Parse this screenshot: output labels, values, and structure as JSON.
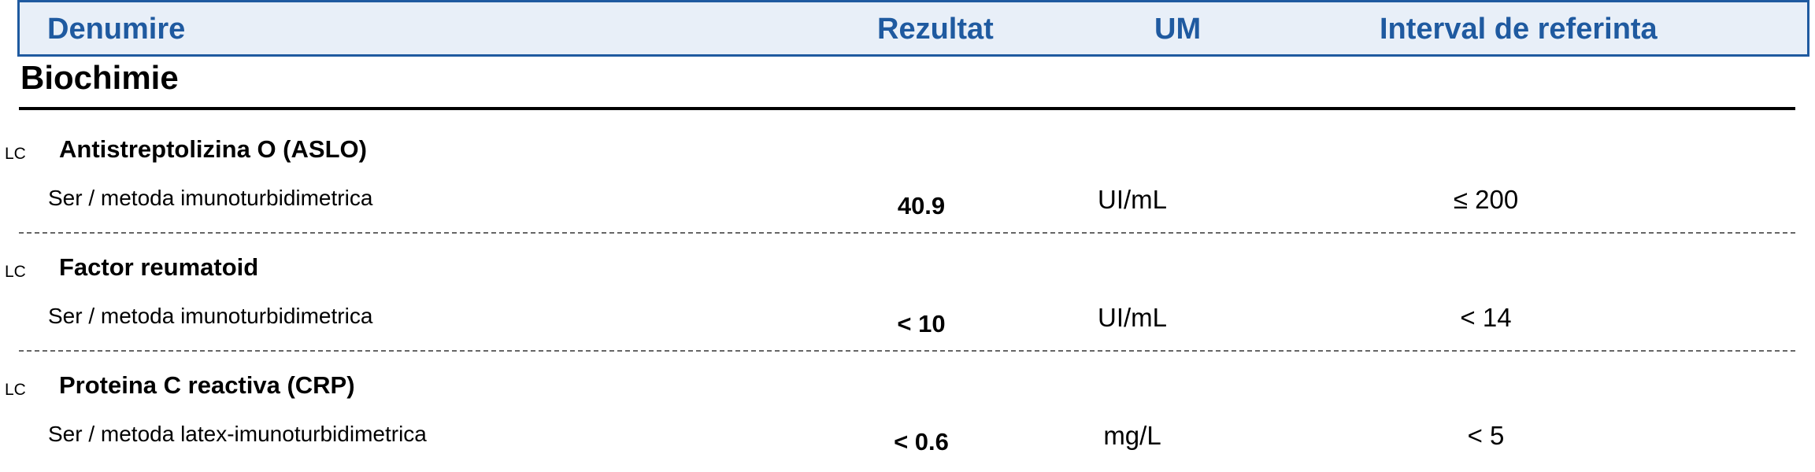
{
  "header": {
    "name_label": "Denumire",
    "result_label": "Rezultat",
    "unit_label": "UM",
    "reference_label": "Interval de referinta"
  },
  "section": {
    "title": "Biochimie"
  },
  "tests": [
    {
      "lab_code": "LC",
      "name": "Antistreptolizina O (ASLO)",
      "method": "Ser / metoda imunoturbidimetrica",
      "result": "40.9",
      "unit": "UI/mL",
      "reference": "≤ 200"
    },
    {
      "lab_code": "LC",
      "name": "Factor reumatoid",
      "method": "Ser / metoda imunoturbidimetrica",
      "result": "< 10",
      "unit": "UI/mL",
      "reference": "< 14"
    },
    {
      "lab_code": "LC",
      "name": "Proteina C reactiva (CRP)",
      "method": "Ser / metoda latex-imunoturbidimetrica",
      "result": "< 0.6",
      "unit": "mg/L",
      "reference": "< 5"
    }
  ],
  "colors": {
    "header_text": "#1f5aa0",
    "header_background": "#e8eff8",
    "header_border": "#1f5aa0"
  }
}
